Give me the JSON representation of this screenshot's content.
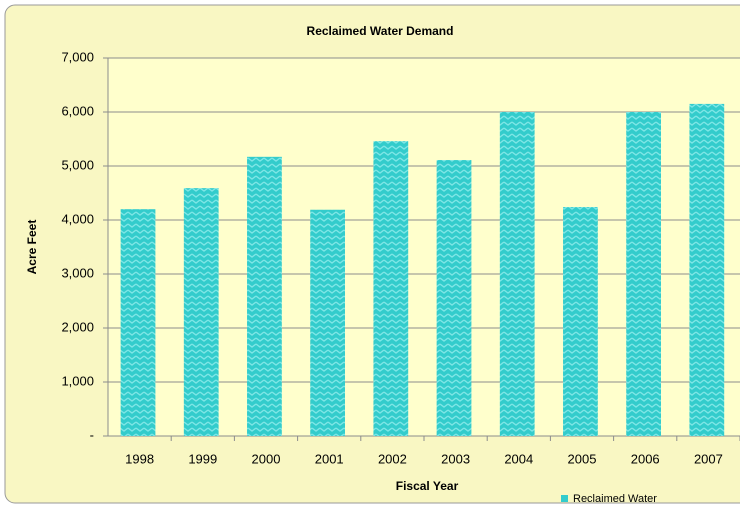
{
  "chart_data": {
    "type": "bar",
    "title": "Reclaimed Water Demand",
    "x_label": "Fiscal Year",
    "y_label": "Acre Feet",
    "categories": [
      "1998",
      "1999",
      "2000",
      "2001",
      "2002",
      "2003",
      "2004",
      "2005",
      "2006",
      "2007"
    ],
    "series": [
      {
        "name": "Reclaimed Water",
        "color": "#33cccc",
        "values": [
          4200,
          4590,
          5170,
          4190,
          5460,
          5110,
          6000,
          4240,
          6000,
          6150
        ]
      }
    ],
    "ylim": [
      0,
      7000
    ],
    "yticks": [
      {
        "value": 0,
        "label": "-"
      },
      {
        "value": 1000,
        "label": "1,000"
      },
      {
        "value": 2000,
        "label": "2,000"
      },
      {
        "value": 3000,
        "label": "3,000"
      },
      {
        "value": 4000,
        "label": "4,000"
      },
      {
        "value": 5000,
        "label": "5,000"
      },
      {
        "value": 6000,
        "label": "6,000"
      },
      {
        "value": 7000,
        "label": "7,000"
      }
    ],
    "grid": true,
    "legend": "bottom-right"
  }
}
